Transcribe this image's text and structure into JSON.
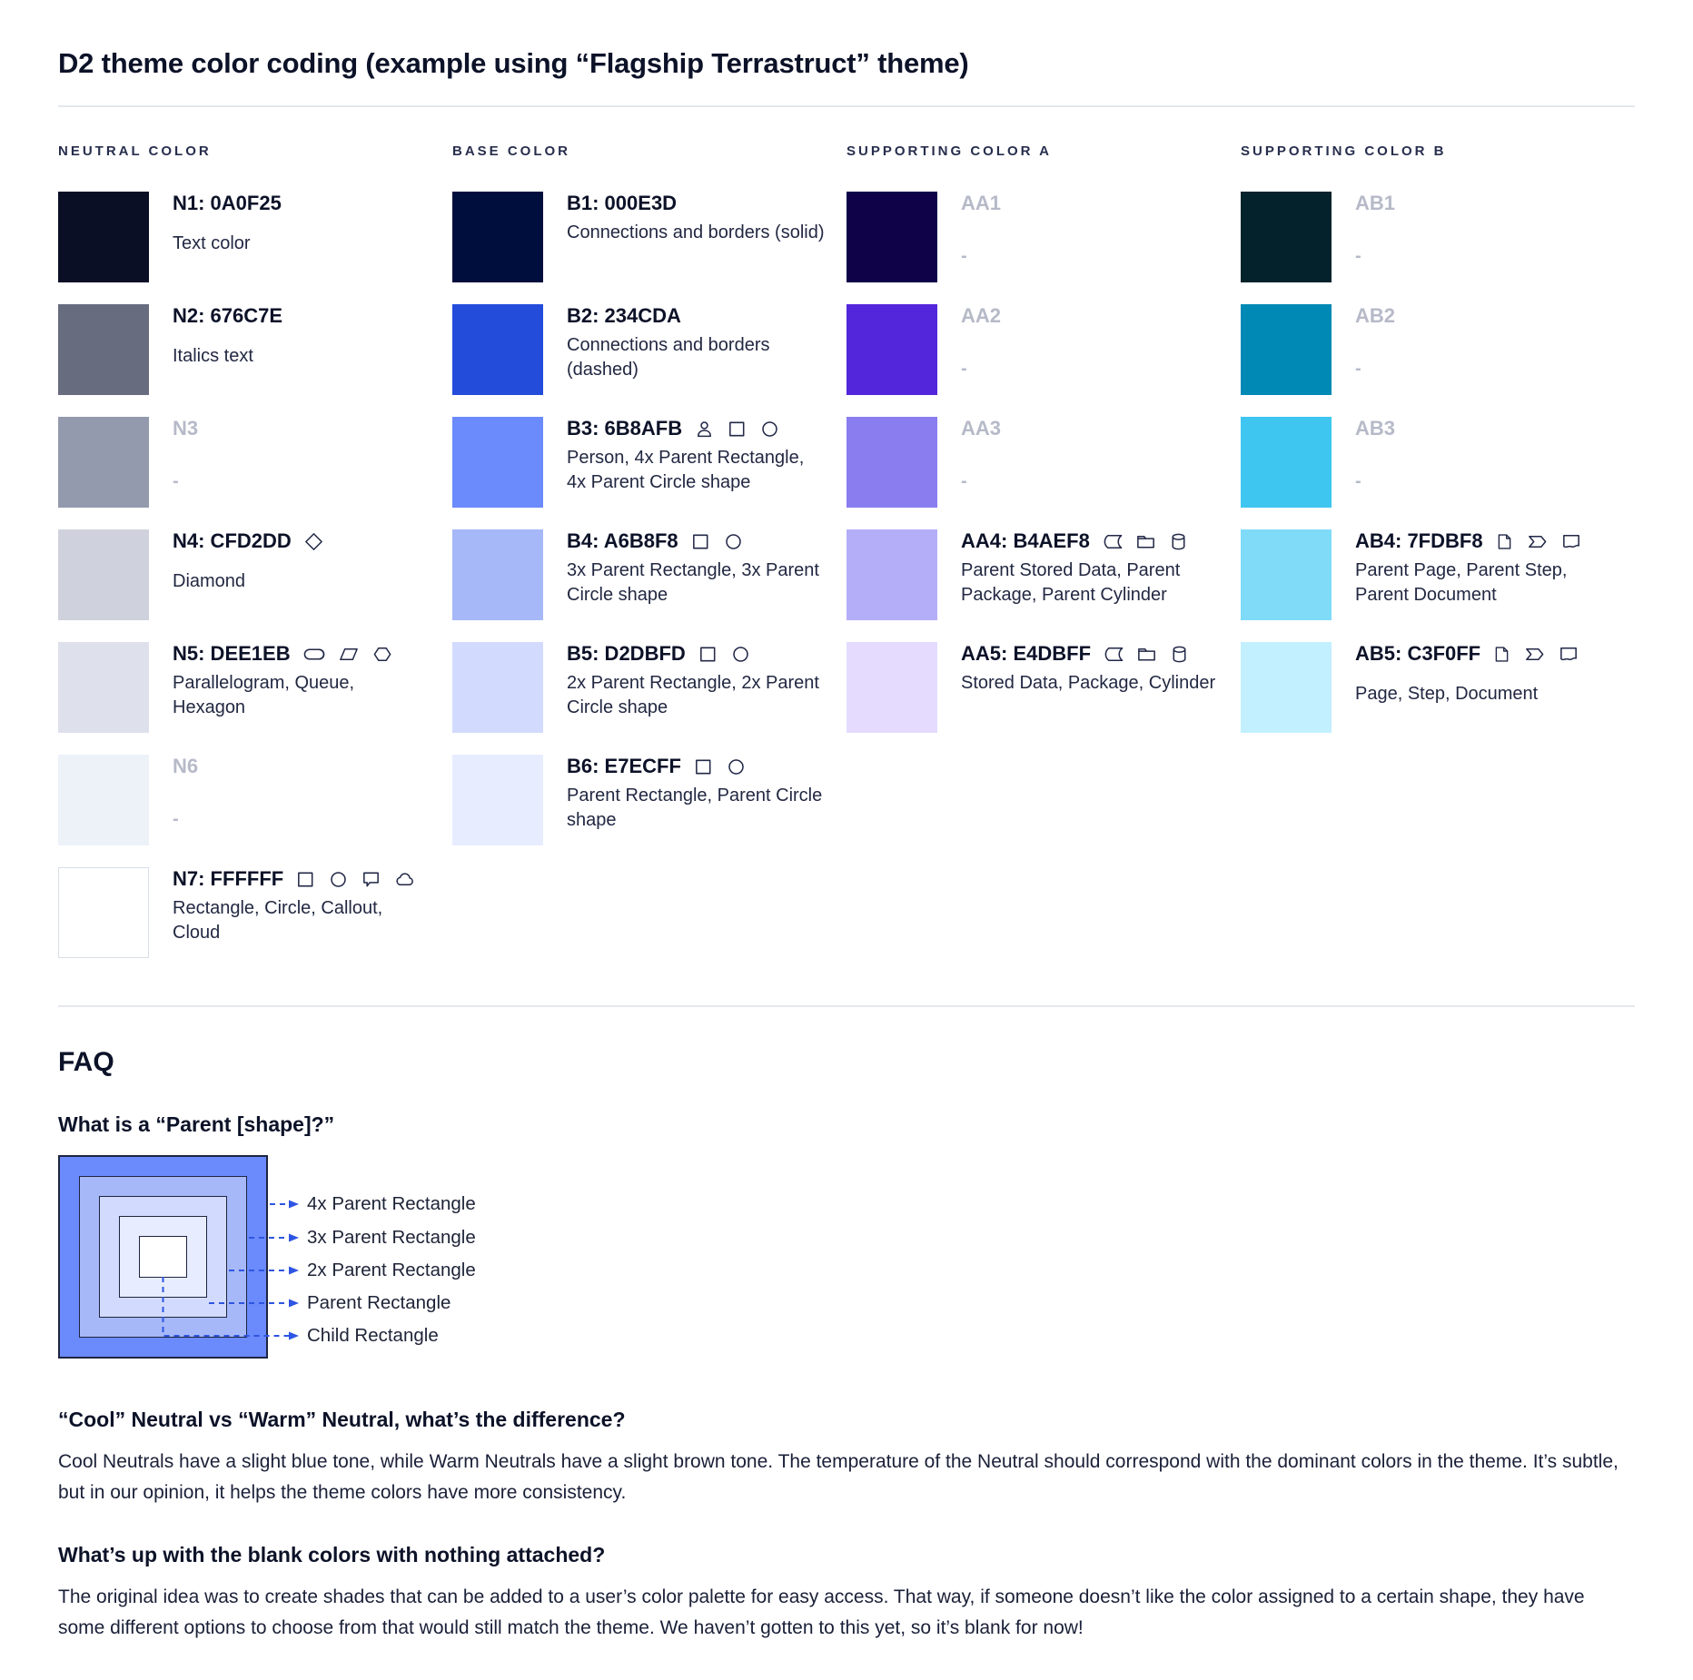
{
  "page": {
    "title": "D2 theme color coding (example using “Flagship Terrastruct” theme)"
  },
  "accent_line_color": "#2E55E2",
  "palette": {
    "columns": [
      {
        "header": "NEUTRAL COLOR",
        "rows": [
          {
            "label": "N1: 0A0F25",
            "color": "#0A0F25",
            "desc": "Text color",
            "muted": false,
            "icons": [],
            "border": false
          },
          {
            "label": "N2: 676C7E",
            "color": "#676C7E",
            "desc": "Italics text",
            "muted": false,
            "icons": [],
            "border": false
          },
          {
            "label": "N3",
            "color": "#949AAD",
            "desc": "-",
            "muted": true,
            "icons": [],
            "border": false
          },
          {
            "label": "N4: CFD2DD",
            "color": "#CFD2DD",
            "desc": "Diamond",
            "muted": false,
            "icons": [
              "diamond"
            ],
            "border": false
          },
          {
            "label": "N5: DEE1EB",
            "color": "#DEE1EB",
            "desc": "Parallelogram, Queue, Hexagon",
            "muted": false,
            "icons": [
              "queue",
              "parallelogram",
              "hexagon"
            ],
            "border": false
          },
          {
            "label": "N6",
            "color": "#EDF1F8",
            "desc": "-",
            "muted": true,
            "icons": [],
            "border": false
          },
          {
            "label": "N7: FFFFFF",
            "color": "#FFFFFF",
            "desc": "Rectangle, Circle, Callout, Cloud",
            "muted": false,
            "icons": [
              "rectangle",
              "circle",
              "callout",
              "cloud"
            ],
            "border": true
          }
        ]
      },
      {
        "header": "BASE COLOR",
        "rows": [
          {
            "label": "B1: 000E3D",
            "color": "#000E3D",
            "desc": "Connections and borders (solid)",
            "muted": false,
            "icons": [],
            "border": false
          },
          {
            "label": "B2: 234CDA",
            "color": "#234CDA",
            "desc": "Connections and borders (dashed)",
            "muted": false,
            "icons": [],
            "border": false
          },
          {
            "label": "B3: 6B8AFB",
            "color": "#6B8AFB",
            "desc": "Person, 4x Parent Rectangle, 4x Parent Circle shape",
            "muted": false,
            "icons": [
              "person",
              "rectangle",
              "circle"
            ],
            "border": false
          },
          {
            "label": "B4: A6B8F8",
            "color": "#A6B8F8",
            "desc": "3x Parent Rectangle, 3x Parent Circle shape",
            "muted": false,
            "icons": [
              "rectangle",
              "circle"
            ],
            "border": false
          },
          {
            "label": "B5: D2DBFD",
            "color": "#D2DBFD",
            "desc": "2x Parent Rectangle, 2x Parent Circle shape",
            "muted": false,
            "icons": [
              "rectangle",
              "circle"
            ],
            "border": false
          },
          {
            "label": "B6: E7ECFF",
            "color": "#E7ECFF",
            "desc": "Parent Rectangle, Parent Circle shape",
            "muted": false,
            "icons": [
              "rectangle",
              "circle"
            ],
            "border": false
          }
        ]
      },
      {
        "header": "SUPPORTING COLOR A",
        "rows": [
          {
            "label": "AA1",
            "color": "#0F0249",
            "desc": "-",
            "muted": true,
            "icons": [],
            "border": false
          },
          {
            "label": "AA2",
            "color": "#5326DB",
            "desc": "-",
            "muted": true,
            "icons": [],
            "border": false
          },
          {
            "label": "AA3",
            "color": "#8A7DF0",
            "desc": "-",
            "muted": true,
            "icons": [],
            "border": false
          },
          {
            "label": "AA4: B4AEF8",
            "color": "#B4AEF8",
            "desc": "Parent Stored Data, Parent Package,  Parent Cylinder",
            "muted": false,
            "icons": [
              "stored-data",
              "package",
              "cylinder"
            ],
            "border": false
          },
          {
            "label": "AA5: E4DBFF",
            "color": "#E4DBFF",
            "desc": "Stored Data, Package, Cylinder",
            "muted": false,
            "icons": [
              "stored-data",
              "package",
              "cylinder"
            ],
            "border": false
          }
        ]
      },
      {
        "header": "SUPPORTING COLOR B",
        "rows": [
          {
            "label": "AB1",
            "color": "#03222B",
            "desc": "-",
            "muted": true,
            "icons": [],
            "border": false
          },
          {
            "label": "AB2",
            "color": "#0189B5",
            "desc": "-",
            "muted": true,
            "icons": [],
            "border": false
          },
          {
            "label": "AB3",
            "color": "#3EC6F0",
            "desc": "-",
            "muted": true,
            "icons": [],
            "border": false
          },
          {
            "label": "AB4: 7FDBF8",
            "color": "#7FDBF8",
            "desc": "Parent Page, Parent Step, Parent Document",
            "muted": false,
            "icons": [
              "page",
              "step",
              "document"
            ],
            "border": false
          },
          {
            "label": "AB5: C3F0FF",
            "color": "#C3F0FF",
            "desc": "Page, Step, Document",
            "muted": false,
            "icons": [
              "page",
              "step",
              "document"
            ],
            "border": false
          }
        ]
      }
    ]
  },
  "faq": {
    "heading": "FAQ",
    "q1": "What is a “Parent [shape]?”",
    "diagram_colors": [
      "#6B8AFB",
      "#A6B8F8",
      "#D2DBFD",
      "#E7ECFF",
      "#FFFFFF"
    ],
    "diagram_labels": [
      "4x Parent Rectangle",
      "3x Parent Rectangle",
      "2x Parent Rectangle",
      "Parent Rectangle",
      "Child Rectangle"
    ],
    "q2": "“Cool” Neutral vs “Warm” Neutral, what’s the difference?",
    "a2": "Cool Neutrals have a slight blue tone, while Warm Neutrals have a slight brown tone. The temperature of the Neutral should correspond with the dominant colors in the theme. It’s subtle, but in our opinion, it helps the theme colors have more consistency.",
    "q3": "What’s up with the blank colors with nothing attached?",
    "a3": "The original idea was to create shades that can be added to a user’s color palette for easy access. That way, if someone doesn’t like the color assigned to a certain shape, they have some different options to choose from that would still match the theme. We haven’t gotten to this yet, so it’s blank for now!"
  }
}
